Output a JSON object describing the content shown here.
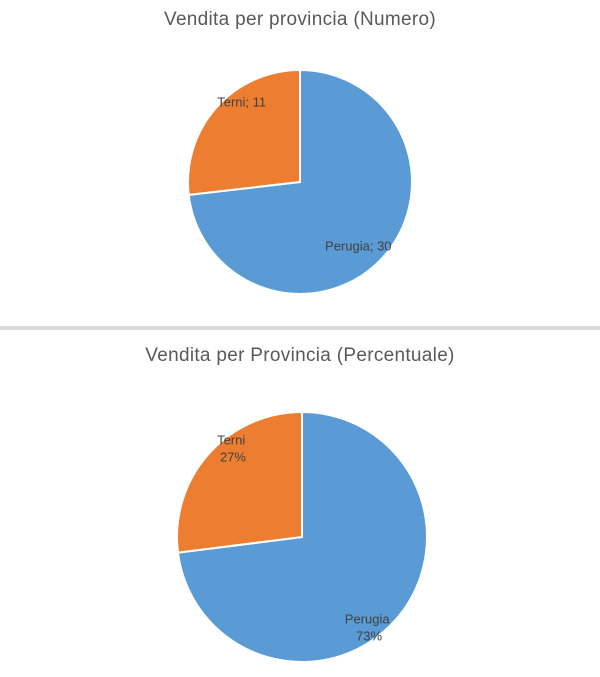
{
  "colors": {
    "perugia": "#5b9bd5",
    "terni": "#ed7d31"
  },
  "chart_data": [
    {
      "type": "pie",
      "title": "Vendita per provincia (Numero)",
      "categories": [
        "Perugia",
        "Terni"
      ],
      "values": [
        30,
        11
      ],
      "labels": [
        "Perugia; 30",
        "Terni; 11"
      ]
    },
    {
      "type": "pie",
      "title": "Vendita per Provincia (Percentuale)",
      "categories": [
        "Perugia",
        "Terni"
      ],
      "values": [
        73,
        27
      ],
      "labels": [
        [
          "Perugia",
          "73%"
        ],
        [
          "Terni",
          "27%"
        ]
      ]
    }
  ]
}
